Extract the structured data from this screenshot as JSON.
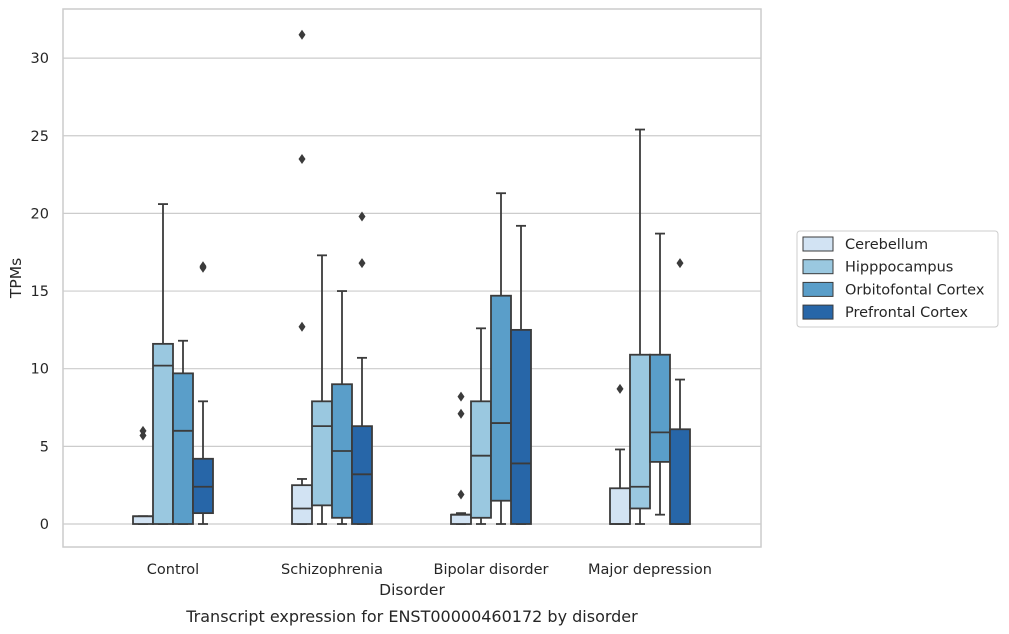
{
  "caption": "Transcript expression for ENST00000460172 by disorder",
  "chart_data": {
    "type": "box",
    "xlabel": "Disorder",
    "ylabel": "TPMs",
    "ylim": [
      -1.5,
      33.0
    ],
    "yticks": [
      0,
      5,
      10,
      15,
      20,
      25,
      30
    ],
    "grid": true,
    "legend_position": "right",
    "categories": [
      "Control",
      "Schizophrenia",
      "Bipolar disorder",
      "Major depression"
    ],
    "series": [
      {
        "name": "Cerebellum",
        "color": "#d2e3f3",
        "boxes": [
          {
            "whislo": 0,
            "q1": 0,
            "med": 0.5,
            "q3": 0.5,
            "whishi": 0.5,
            "fliers": [
              5.7,
              6.0
            ]
          },
          {
            "whislo": 0,
            "q1": 0,
            "med": 1.0,
            "q3": 2.5,
            "whishi": 2.9,
            "fliers": [
              12.7,
              23.5,
              31.5
            ]
          },
          {
            "whislo": 0,
            "q1": 0,
            "med": 0.6,
            "q3": 0.6,
            "whishi": 0.7,
            "fliers": [
              1.9,
              7.1,
              8.2
            ]
          },
          {
            "whislo": 0,
            "q1": 0,
            "med": 0,
            "q3": 2.3,
            "whishi": 4.8,
            "fliers": [
              8.7
            ]
          }
        ]
      },
      {
        "name": "Hipppocampus",
        "color": "#9ac8e0",
        "boxes": [
          {
            "whislo": 0,
            "q1": 0,
            "med": 10.2,
            "q3": 11.6,
            "whishi": 20.6,
            "fliers": []
          },
          {
            "whislo": 0,
            "q1": 1.2,
            "med": 6.3,
            "q3": 7.9,
            "whishi": 17.3,
            "fliers": []
          },
          {
            "whislo": 0,
            "q1": 0.4,
            "med": 4.4,
            "q3": 7.9,
            "whishi": 12.6,
            "fliers": []
          },
          {
            "whislo": 0,
            "q1": 1.0,
            "med": 2.4,
            "q3": 10.9,
            "whishi": 25.4,
            "fliers": []
          }
        ]
      },
      {
        "name": "Orbitofontal Cortex",
        "color": "#5a9ec9",
        "boxes": [
          {
            "whislo": 0,
            "q1": 0,
            "med": 6.0,
            "q3": 9.7,
            "whishi": 11.8,
            "fliers": []
          },
          {
            "whislo": 0,
            "q1": 0.4,
            "med": 4.7,
            "q3": 9.0,
            "whishi": 15.0,
            "fliers": []
          },
          {
            "whislo": 0,
            "q1": 1.5,
            "med": 6.5,
            "q3": 14.7,
            "whishi": 21.3,
            "fliers": []
          },
          {
            "whislo": 0.6,
            "q1": 4.0,
            "med": 5.9,
            "q3": 10.9,
            "whishi": 18.7,
            "fliers": []
          }
        ]
      },
      {
        "name": "Prefrontal Cortex",
        "color": "#2766a8",
        "boxes": [
          {
            "whislo": 0,
            "q1": 0.7,
            "med": 2.4,
            "q3": 4.2,
            "whishi": 7.9,
            "fliers": [
              16.5,
              16.6
            ]
          },
          {
            "whislo": 0,
            "q1": 0,
            "med": 3.2,
            "q3": 6.3,
            "whishi": 10.7,
            "fliers": [
              16.8,
              19.8
            ]
          },
          {
            "whislo": 0,
            "q1": 0,
            "med": 3.9,
            "q3": 12.5,
            "whishi": 19.2,
            "fliers": []
          },
          {
            "whislo": 0,
            "q1": 0,
            "med": 0,
            "q3": 6.1,
            "whishi": 9.3,
            "fliers": [
              16.8
            ]
          }
        ]
      }
    ]
  }
}
